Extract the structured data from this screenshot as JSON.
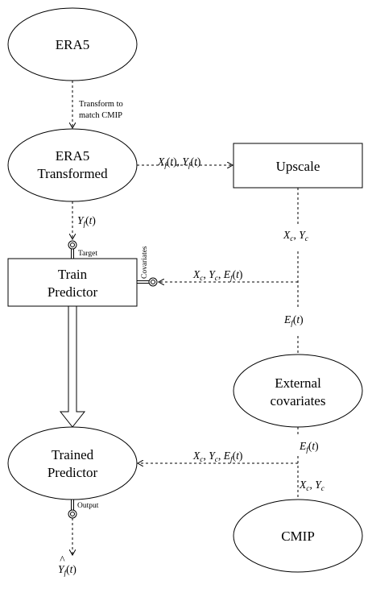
{
  "nodes": {
    "era5": "ERA5",
    "era5_transformed": [
      "ERA5",
      "Transformed"
    ],
    "upscale": "Upscale",
    "train_predictor": [
      "Train",
      "Predictor"
    ],
    "external_covariates": [
      "External",
      "covariates"
    ],
    "trained_predictor": [
      "Trained",
      "Predictor"
    ],
    "cmip": "CMIP"
  },
  "edge_labels": {
    "transform": [
      "Transform to",
      "match CMIP"
    ],
    "xf_yf": "Xf(t), Yf(t)",
    "yf": "Yf(t)",
    "xc_yc_upper": "Xc, Yc",
    "xc_yc_ef_train": "Xc, Yc, Ef(t)",
    "ef_upper": "Ef(t)",
    "ef_lower": "Ef(t)",
    "xc_yc_lower": "Xc, Yc",
    "xc_yc_ef_trained": "Xc, Yc, Ef(t)",
    "yhat": "Ŷf(t)"
  },
  "port_labels": {
    "target": "Target",
    "covariates": "Covariates",
    "output": "Output"
  }
}
